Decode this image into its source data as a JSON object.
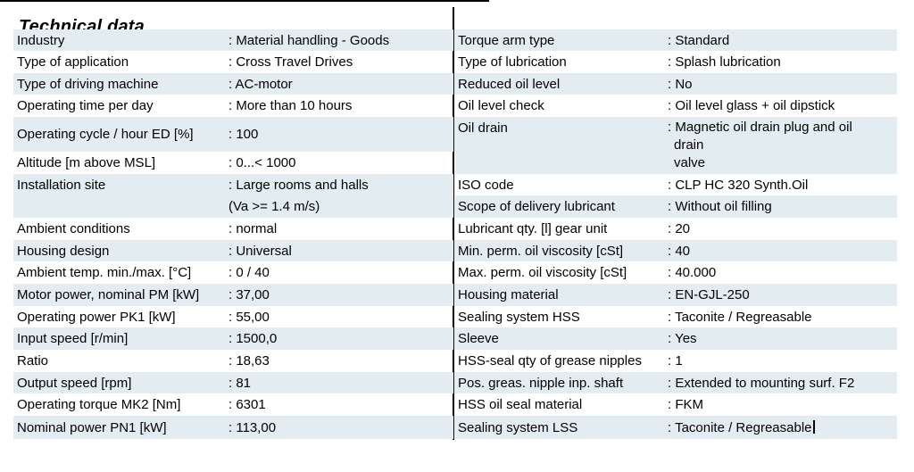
{
  "title": "Technical data",
  "colors": {
    "row_highlight": "#e3ecf1",
    "row_plain": "#ffffff",
    "divider": "#000000",
    "text": "#000000"
  },
  "left_table": {
    "rows": [
      {
        "label": "Industry",
        "lines": [
          ": Material handling - Goods"
        ]
      },
      {
        "label": "Type of application",
        "lines": [
          ": Cross Travel Drives"
        ]
      },
      {
        "label": "Type of driving machine",
        "lines": [
          ": AC-motor"
        ]
      },
      {
        "label": "Operating time per day",
        "lines": [
          ": More than 10 hours"
        ]
      },
      {
        "label": "Operating cycle / hour ED [%]",
        "lines": [
          ": 100"
        ]
      },
      {
        "label": "Altitude [m above MSL]",
        "lines": [
          ": 0...< 1000"
        ]
      },
      {
        "label": "Installation site",
        "lines": [
          ": Large rooms and halls",
          "(Va >= 1.4 m/s)"
        ]
      },
      {
        "label": "Ambient conditions",
        "lines": [
          ": normal"
        ]
      },
      {
        "label": "Housing design",
        "lines": [
          ": Universal"
        ]
      },
      {
        "label": "Ambient temp. min./max. [°C]",
        "lines": [
          ": 0 / 40"
        ]
      },
      {
        "label": "Motor power, nominal PM [kW]",
        "lines": [
          ": 37,00"
        ]
      },
      {
        "label": "Operating power PK1 [kW]",
        "lines": [
          ": 55,00"
        ]
      },
      {
        "label": "Input speed [r/min]",
        "lines": [
          ": 1500,0"
        ]
      },
      {
        "label": "Ratio",
        "lines": [
          ": 18,63"
        ]
      },
      {
        "label": "Output speed [rpm]",
        "lines": [
          ": 81"
        ]
      },
      {
        "label": "Operating torque MK2 [Nm]",
        "lines": [
          ": 6301"
        ]
      },
      {
        "label": "Nominal power PN1 [kW]",
        "lines": [
          ": 113,00"
        ]
      }
    ]
  },
  "right_table": {
    "rows": [
      {
        "label": "Torque arm type",
        "lines": [
          ": Standard"
        ]
      },
      {
        "label": "Type of lubrication",
        "lines": [
          ": Splash lubrication"
        ]
      },
      {
        "label": "Reduced oil level",
        "lines": [
          ": No"
        ]
      },
      {
        "label": "Oil level check",
        "lines": [
          ": Oil level glass + oil dipstick"
        ]
      },
      {
        "label": "Oil drain",
        "lines": [
          ": Magnetic oil drain plug and oil",
          "drain",
          "valve"
        ]
      },
      {
        "label": "ISO code",
        "lines": [
          ": CLP HC 320 Synth.Oil"
        ]
      },
      {
        "label": "Scope of delivery lubricant",
        "lines": [
          ": Without oil filling"
        ]
      },
      {
        "label": "Lubricant qty. [l] gear unit",
        "lines": [
          ": 20"
        ]
      },
      {
        "label": "Min. perm. oil viscosity [cSt]",
        "lines": [
          ": 40"
        ]
      },
      {
        "label": "Max. perm. oil viscosity [cSt]",
        "lines": [
          ": 40.000"
        ]
      },
      {
        "label": "Housing material",
        "lines": [
          ": EN-GJL-250"
        ]
      },
      {
        "label": "Sealing system HSS",
        "lines": [
          ": Taconite / Regreasable"
        ]
      },
      {
        "label": "Sleeve",
        "lines": [
          ": Yes"
        ]
      },
      {
        "label": "HSS-seal qty of grease nipples",
        "lines": [
          ": 1"
        ]
      },
      {
        "label": "Pos. greas. nipple inp. shaft",
        "lines": [
          ": Extended to mounting surf. F2"
        ]
      },
      {
        "label": "HSS oil seal material",
        "lines": [
          ": FKM"
        ]
      },
      {
        "label": "Sealing system LSS",
        "lines": [
          ": Taconite / Regreasable"
        ],
        "caret": true
      }
    ]
  }
}
